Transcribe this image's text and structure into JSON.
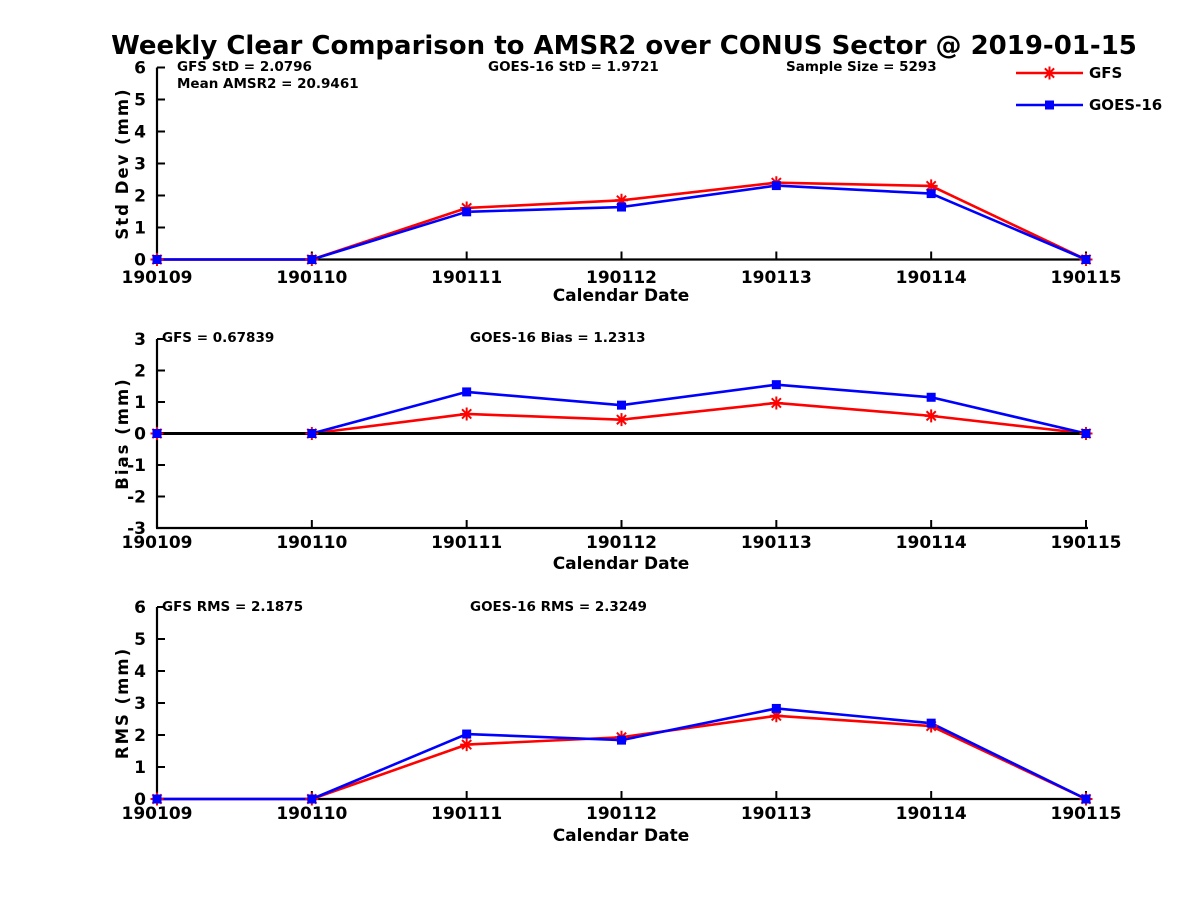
{
  "title": "Weekly Clear Comparison to AMSR2 over CONUS Sector @ 2019-01-15",
  "colors": {
    "gfs": "#ff0000",
    "goes16": "#0000ff",
    "axis": "#000000",
    "zero_line": "#000000",
    "background": "#ffffff"
  },
  "legend": {
    "position": "top-right",
    "items": [
      {
        "label": "GFS",
        "color": "#ff0000",
        "marker": "asterisk"
      },
      {
        "label": "GOES-16",
        "color": "#0000ff",
        "marker": "square"
      }
    ]
  },
  "chart_data": [
    {
      "type": "line",
      "id": "std-dev",
      "ylabel": "Std Dev (mm)",
      "xlabel": "Calendar Date",
      "ylim": [
        0,
        6
      ],
      "yticks": [
        0,
        1,
        2,
        3,
        4,
        5,
        6
      ],
      "grid": false,
      "x": [
        "190109",
        "190110",
        "190111",
        "190112",
        "190113",
        "190114",
        "190115"
      ],
      "series": [
        {
          "name": "GFS",
          "color": "#ff0000",
          "marker": "asterisk",
          "values": [
            0,
            0,
            1.61,
            1.85,
            2.4,
            2.3,
            0
          ]
        },
        {
          "name": "GOES-16",
          "color": "#0000ff",
          "marker": "square",
          "values": [
            0,
            0,
            1.49,
            1.64,
            2.31,
            2.06,
            0
          ]
        }
      ],
      "annotations": [
        {
          "text": "GFS StD = 2.0796"
        },
        {
          "text": "Mean AMSR2 = 20.9461"
        },
        {
          "text": "GOES-16 StD = 1.9721"
        },
        {
          "text": "Sample Size = 5293"
        }
      ]
    },
    {
      "type": "line",
      "id": "bias",
      "ylabel": "Bias (mm)",
      "xlabel": "Calendar Date",
      "ylim": [
        -3,
        3
      ],
      "yticks": [
        3,
        2,
        1,
        0,
        -1,
        -2,
        -3
      ],
      "grid": false,
      "zero_line": true,
      "x": [
        "190109",
        "190110",
        "190111",
        "190112",
        "190113",
        "190114",
        "190115"
      ],
      "series": [
        {
          "name": "GFS",
          "color": "#ff0000",
          "marker": "asterisk",
          "values": [
            0,
            0,
            0.62,
            0.44,
            0.97,
            0.56,
            0
          ]
        },
        {
          "name": "GOES-16",
          "color": "#0000ff",
          "marker": "square",
          "values": [
            0,
            0,
            1.32,
            0.9,
            1.55,
            1.15,
            0
          ]
        }
      ],
      "annotations": [
        {
          "text": "GFS = 0.67839"
        },
        {
          "text": "GOES-16 Bias = 1.2313"
        }
      ]
    },
    {
      "type": "line",
      "id": "rms",
      "ylabel": "RMS (mm)",
      "xlabel": "Calendar Date",
      "ylim": [
        0,
        6
      ],
      "yticks": [
        0,
        1,
        2,
        3,
        4,
        5,
        6
      ],
      "grid": false,
      "x": [
        "190109",
        "190110",
        "190111",
        "190112",
        "190113",
        "190114",
        "190115"
      ],
      "series": [
        {
          "name": "GFS",
          "color": "#ff0000",
          "marker": "asterisk",
          "values": [
            0,
            0,
            1.7,
            1.93,
            2.6,
            2.28,
            0
          ]
        },
        {
          "name": "GOES-16",
          "color": "#0000ff",
          "marker": "square",
          "values": [
            0,
            0,
            2.03,
            1.84,
            2.83,
            2.37,
            0
          ]
        }
      ],
      "annotations": [
        {
          "text": "GFS RMS = 2.1875"
        },
        {
          "text": "GOES-16 RMS = 2.3249"
        }
      ]
    }
  ]
}
